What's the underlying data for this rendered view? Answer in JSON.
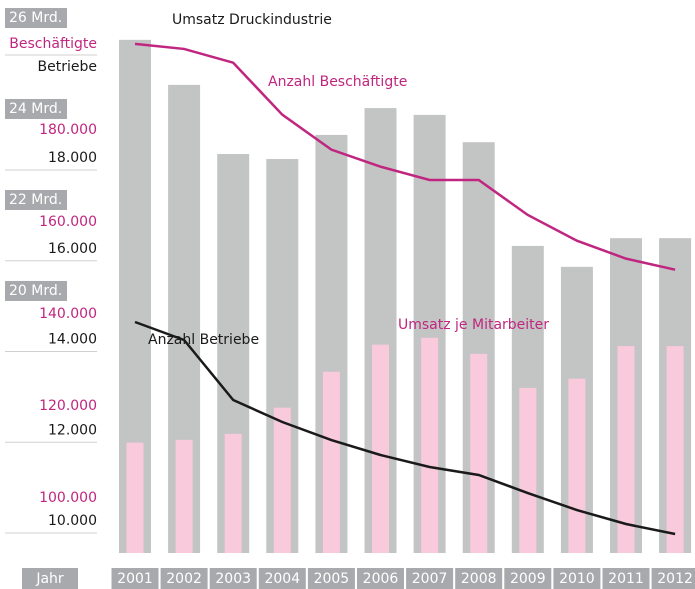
{
  "chart_data": {
    "type": "bar",
    "xlabel": "Jahr",
    "categories": [
      "2001",
      "2002",
      "2003",
      "2004",
      "2005",
      "2006",
      "2007",
      "2008",
      "2009",
      "2010",
      "2011",
      "2012"
    ],
    "series": [
      {
        "name": "Umsatz Druckindustrie",
        "type": "bar",
        "axis": "y",
        "color": "#c3c5c5",
        "values": [
          25.52,
          24.53,
          23.01,
          22.9,
          23.43,
          24.02,
          23.87,
          23.27,
          20.99,
          20.53,
          21.16,
          21.16
        ]
      },
      {
        "name": "Umsatz je Mitarbeiter",
        "type": "bar",
        "axis": "y2",
        "color": "#f9c9dc",
        "values": [
          112000,
          112600,
          113900,
          119600,
          127400,
          133300,
          134800,
          131300,
          123900,
          125900,
          133000,
          133000
        ]
      },
      {
        "name": "Anzahl Beschäftigte",
        "type": "line",
        "axis": "y2",
        "color": "#c0267f",
        "values": [
          198700,
          197600,
          194600,
          183300,
          175700,
          172000,
          169100,
          169100,
          161500,
          155900,
          152000,
          149600
        ]
      },
      {
        "name": "Anzahl Betriebe",
        "type": "line",
        "axis": "y3",
        "color": "#1a1a1a",
        "values": [
          14386,
          13989,
          12667,
          12182,
          11785,
          11455,
          11190,
          11014,
          10617,
          10242,
          9934,
          9713
        ]
      }
    ],
    "ylim": [
      14.24,
      26.22
    ],
    "yticks": [
      {
        "value": 26,
        "label": "26 Mrd."
      },
      {
        "value": 24,
        "label": "24 Mrd."
      },
      {
        "value": 22,
        "label": "22 Mrd."
      },
      {
        "value": 20,
        "label": "20 Mrd."
      }
    ],
    "y2label": "Beschäftigte",
    "y2lim": [
      88000,
      206500
    ],
    "y2ticks": [
      {
        "value": 180000,
        "label": "180.000"
      },
      {
        "value": 160000,
        "label": "160.000"
      },
      {
        "value": 140000,
        "label": "140.000"
      },
      {
        "value": 120000,
        "label": "120.000"
      },
      {
        "value": 100000,
        "label": "100.000"
      }
    ],
    "y3label": "Betriebe",
    "y3lim": [
      9295,
      21306
    ],
    "y3ticks": [
      {
        "value": 18000,
        "label": "18.000"
      },
      {
        "value": 16000,
        "label": "16.000"
      },
      {
        "value": 14000,
        "label": "14.000"
      },
      {
        "value": 12000,
        "label": "12.000"
      },
      {
        "value": 10000,
        "label": "10.000"
      }
    ]
  }
}
